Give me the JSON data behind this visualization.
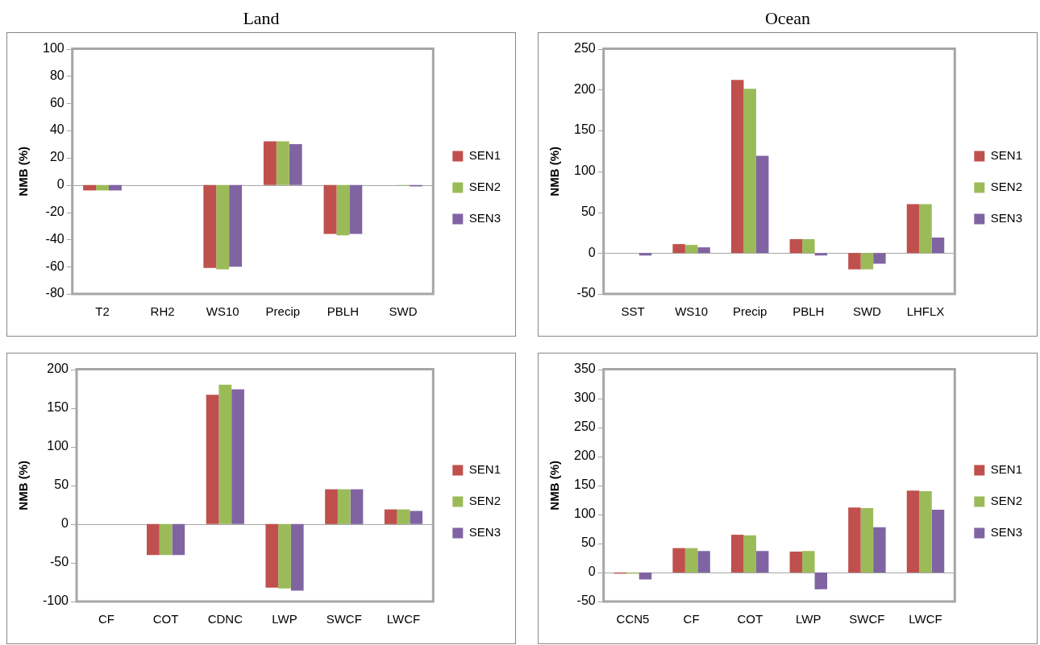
{
  "chart_data": [
    {
      "type": "bar",
      "title": "Land",
      "ylabel": "NMB (%)",
      "categories": [
        "T2",
        "RH2",
        "WS10",
        "Precip",
        "PBLH",
        "SWD"
      ],
      "ylim": [
        -80,
        100
      ],
      "yticks": [
        -80,
        -60,
        -40,
        -20,
        0,
        20,
        40,
        60,
        80,
        100
      ],
      "legend": "right",
      "series": [
        {
          "name": "SEN1",
          "color": "#c0504d",
          "values": [
            -4,
            null,
            -61,
            32,
            -36,
            0
          ]
        },
        {
          "name": "SEN2",
          "color": "#9bbb59",
          "values": [
            -4,
            null,
            -62,
            32,
            -37,
            -0.5
          ]
        },
        {
          "name": "SEN3",
          "color": "#8064a2",
          "values": [
            -4,
            null,
            -60,
            30,
            -36,
            -1
          ]
        }
      ]
    },
    {
      "type": "bar",
      "title": "Ocean",
      "ylabel": "NMB (%)",
      "categories": [
        "SST",
        "WS10",
        "Precip",
        "PBLH",
        "SWD",
        "LHFLX"
      ],
      "ylim": [
        -50,
        250
      ],
      "yticks": [
        -50,
        0,
        50,
        100,
        150,
        200,
        250
      ],
      "legend": "right",
      "series": [
        {
          "name": "SEN1",
          "color": "#c0504d",
          "values": [
            null,
            11,
            212,
            17,
            -20,
            60
          ]
        },
        {
          "name": "SEN2",
          "color": "#9bbb59",
          "values": [
            null,
            10,
            201,
            17,
            -20,
            60
          ]
        },
        {
          "name": "SEN3",
          "color": "#8064a2",
          "values": [
            -3,
            7,
            119,
            -3,
            -13,
            19
          ]
        }
      ]
    },
    {
      "type": "bar",
      "ylabel": "NMB (%)",
      "categories": [
        "CF",
        "COT",
        "CDNC",
        "LWP",
        "SWCF",
        "LWCF"
      ],
      "ylim": [
        -100,
        200
      ],
      "yticks": [
        -100,
        -50,
        0,
        50,
        100,
        150,
        200
      ],
      "legend": "right",
      "series": [
        {
          "name": "SEN1",
          "color": "#c0504d",
          "values": [
            null,
            -40,
            167,
            -82,
            45,
            19
          ]
        },
        {
          "name": "SEN2",
          "color": "#9bbb59",
          "values": [
            null,
            -40,
            180,
            -83,
            45,
            19
          ]
        },
        {
          "name": "SEN3",
          "color": "#8064a2",
          "values": [
            null,
            -40,
            174,
            -86,
            45,
            17
          ]
        }
      ]
    },
    {
      "type": "bar",
      "ylabel": "NMB (%)",
      "categories": [
        "CCN5",
        "CF",
        "COT",
        "LWP",
        "SWCF",
        "LWCF"
      ],
      "ylim": [
        -50,
        350
      ],
      "yticks": [
        -50,
        0,
        50,
        100,
        150,
        200,
        250,
        300,
        350
      ],
      "legend": "right",
      "series": [
        {
          "name": "SEN1",
          "color": "#c0504d",
          "values": [
            -2,
            42,
            65,
            36,
            112,
            141
          ]
        },
        {
          "name": "SEN2",
          "color": "#9bbb59",
          "values": [
            -2,
            42,
            64,
            37,
            111,
            140
          ]
        },
        {
          "name": "SEN3",
          "color": "#8064a2",
          "values": [
            -12,
            37,
            37,
            -29,
            78,
            108
          ]
        }
      ]
    }
  ]
}
